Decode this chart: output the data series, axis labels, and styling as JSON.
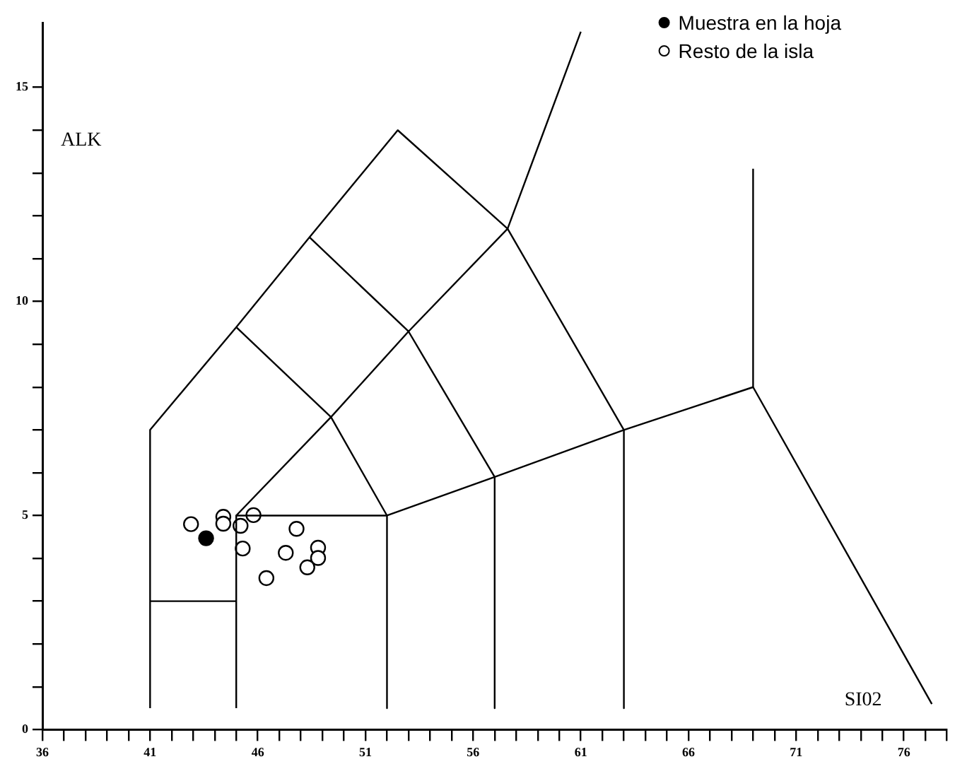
{
  "chart_data": {
    "type": "scatter",
    "xlabel": "SI02",
    "ylabel": "ALK",
    "xlim": [
      36,
      78
    ],
    "ylim": [
      0,
      16.5
    ],
    "xticks": [
      36,
      {
        "value": 37,
        "label": null
      },
      {
        "value": 38,
        "label": null
      },
      {
        "value": 39,
        "label": null
      },
      {
        "value": 40,
        "label": null
      },
      41,
      {
        "value": 42,
        "label": null
      },
      {
        "value": 43,
        "label": null
      },
      {
        "value": 44,
        "label": null
      },
      {
        "value": 45,
        "label": null
      },
      46,
      {
        "value": 47,
        "label": null
      },
      {
        "value": 48,
        "label": null
      },
      {
        "value": 49,
        "label": null
      },
      {
        "value": 50,
        "label": null
      },
      51,
      {
        "value": 52,
        "label": null
      },
      {
        "value": 53,
        "label": null
      },
      {
        "value": 54,
        "label": null
      },
      {
        "value": 55,
        "label": null
      },
      56,
      {
        "value": 57,
        "label": null
      },
      {
        "value": 58,
        "label": null
      },
      {
        "value": 59,
        "label": null
      },
      {
        "value": 60,
        "label": null
      },
      61,
      {
        "value": 62,
        "label": null
      },
      {
        "value": 63,
        "label": null
      },
      {
        "value": 64,
        "label": null
      },
      {
        "value": 65,
        "label": null
      },
      66,
      {
        "value": 67,
        "label": null
      },
      {
        "value": 68,
        "label": null
      },
      {
        "value": 69,
        "label": null
      },
      {
        "value": 70,
        "label": null
      },
      71,
      {
        "value": 72,
        "label": null
      },
      {
        "value": 73,
        "label": null
      },
      {
        "value": 74,
        "label": null
      },
      {
        "value": 75,
        "label": null
      },
      76,
      {
        "value": 77,
        "label": null
      },
      {
        "value": 78,
        "label": null
      }
    ],
    "yticks": [
      0,
      {
        "value": 1,
        "label": null
      },
      {
        "value": 2,
        "label": null
      },
      {
        "value": 3,
        "label": null
      },
      {
        "value": 4,
        "label": null
      },
      5,
      {
        "value": 6,
        "label": null
      },
      {
        "value": 7,
        "label": null
      },
      {
        "value": 8,
        "label": null
      },
      {
        "value": 9,
        "label": null
      },
      10,
      {
        "value": 11,
        "label": null
      },
      {
        "value": 12,
        "label": null
      },
      {
        "value": 13,
        "label": null
      },
      {
        "value": 14,
        "label": null
      },
      15
    ],
    "grid": false,
    "legend": "top right",
    "marker": "circle",
    "series": [
      {
        "type": "line",
        "color": "#000000",
        "marker": "none",
        "x": [
          41,
          41,
          45,
          48.4,
          52.5,
          57.6,
          63,
          69,
          77.3
        ],
        "values": [
          0.5,
          7,
          9.4,
          11.5,
          14,
          11.7,
          7,
          8,
          0.6
        ]
      },
      {
        "type": "line",
        "color": "#000000",
        "marker": "none",
        "x": [
          41,
          45
        ],
        "values": [
          3,
          3
        ]
      },
      {
        "type": "line",
        "color": "#000000",
        "marker": "none",
        "x": [
          45,
          45,
          52,
          52
        ],
        "values": [
          0.5,
          5,
          5,
          0.5
        ]
      },
      {
        "type": "line",
        "color": "#000000",
        "marker": "none",
        "x": [
          45,
          49.4,
          53,
          57.6,
          61
        ],
        "values": [
          5,
          7.3,
          9.3,
          11.7,
          16.3
        ]
      },
      {
        "type": "line",
        "color": "#000000",
        "marker": "none",
        "x": [
          45,
          49.4,
          52,
          57,
          63
        ],
        "values": [
          9.4,
          7.3,
          5,
          5.9,
          7
        ]
      },
      {
        "type": "line",
        "color": "#000000",
        "marker": "none",
        "x": [
          48.4,
          53,
          57,
          57
        ],
        "values": [
          11.5,
          9.3,
          5.9,
          0.5
        ]
      },
      {
        "type": "line",
        "color": "#000000",
        "marker": "none",
        "x": [
          63,
          63
        ],
        "values": [
          7,
          0.5
        ]
      },
      {
        "type": "line",
        "color": "#000000",
        "marker": "none",
        "x": [
          69,
          69
        ],
        "values": [
          8,
          13.1
        ]
      },
      {
        "type": "scatter",
        "name": "Muestra en la hoja",
        "color": "#000000",
        "x": [
          43.6
        ],
        "values": [
          4.47
        ]
      },
      {
        "type": "scatter",
        "name": "Resto de la isla",
        "color": "#ffffff",
        "x": [
          42.9,
          44.4,
          44.4,
          45.2,
          45.8,
          45.3,
          47.8,
          47.3,
          48.8,
          48.8,
          48.3,
          46.4
        ],
        "values": [
          4.8,
          4.97,
          4.81,
          4.76,
          5.01,
          4.23,
          4.69,
          4.13,
          4.25,
          4.01,
          3.79,
          3.54
        ]
      }
    ]
  }
}
